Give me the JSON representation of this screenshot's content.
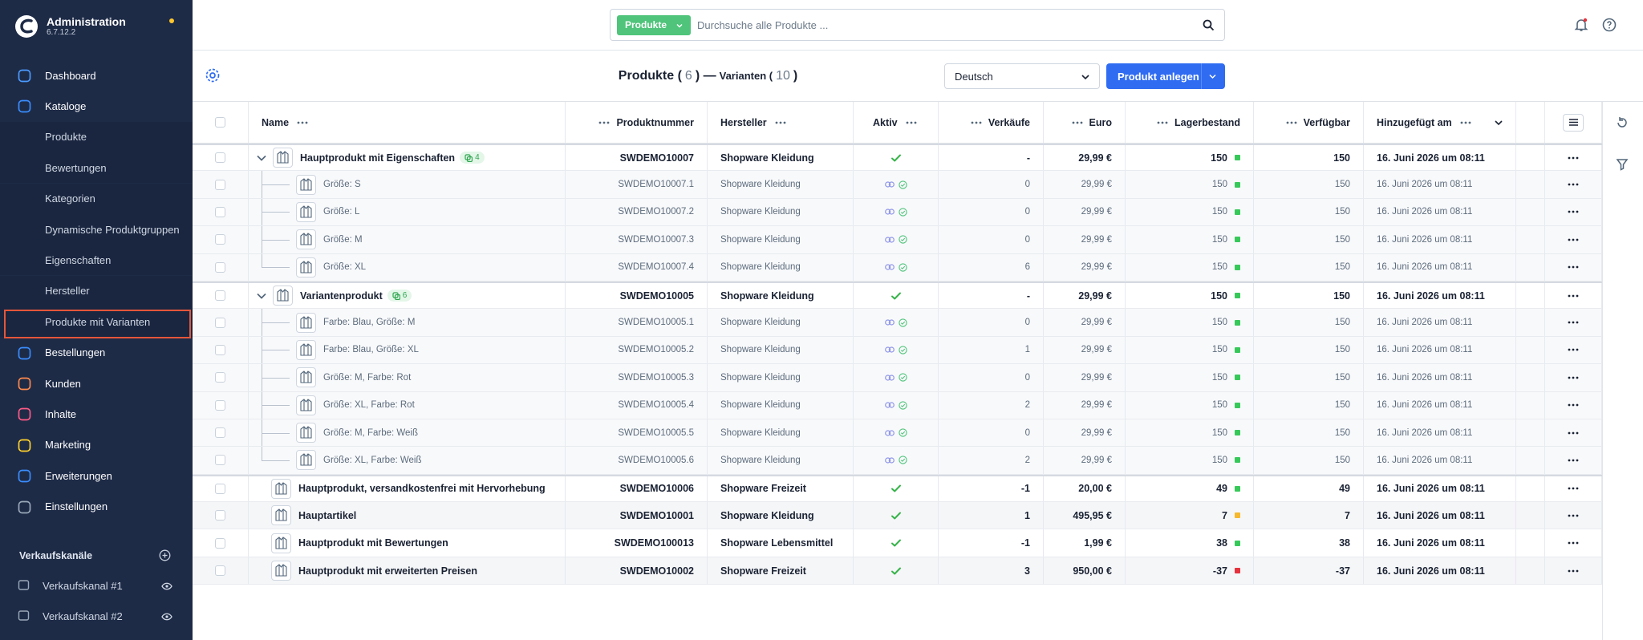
{
  "sidebar": {
    "app_name": "Administration",
    "version": "6.7.12.2",
    "nav": [
      {
        "label": "Dashboard"
      },
      {
        "label": "Kataloge",
        "children": [
          "Produkte",
          "Bewertungen",
          "Kategorien",
          "Dynamische Produktgruppen",
          "Eigenschaften",
          "Hersteller",
          "Produkte mit Varianten"
        ]
      },
      {
        "label": "Bestellungen"
      },
      {
        "label": "Kunden"
      },
      {
        "label": "Inhalte"
      },
      {
        "label": "Marketing"
      },
      {
        "label": "Erweiterungen"
      },
      {
        "label": "Einstellungen"
      }
    ],
    "sales_channels": {
      "title": "Verkaufskanäle",
      "items": [
        "Verkaufskanal #1",
        "Verkaufskanal #2"
      ]
    }
  },
  "search": {
    "filter": "Produkte",
    "placeholder": "Durchsuche alle Produkte ..."
  },
  "header": {
    "title_parts": [
      "Produkte (",
      6,
      ") —",
      "Varianten (",
      10,
      ")"
    ],
    "language": "Deutsch",
    "create_button": "Produkt anlegen"
  },
  "table": {
    "columns": [
      "Name",
      "Produktnummer",
      "Hersteller",
      "Aktiv",
      "Verkäufe",
      "Euro",
      "Lagerbestand",
      "Verfügbar",
      "Hinzugefügt am"
    ],
    "rows": [
      {
        "kind": "parent",
        "name": "Hauptprodukt mit Eigenschaften",
        "variants": 4,
        "number": "SWDEMO10007",
        "manufacturer": "Shopware Kleidung",
        "sales": "-",
        "price": "29,99 €",
        "stock": 150,
        "stock_color": "#37c85a",
        "available": 150,
        "added": "16. Juni 2026 um 08:11"
      },
      {
        "kind": "variant",
        "name": "Größe: S",
        "number": "SWDEMO10007.1",
        "manufacturer": "Shopware Kleidung",
        "sales": 0,
        "price": "29,99 €",
        "stock": 150,
        "stock_color": "#37c85a",
        "available": 150,
        "added": "16. Juni 2026 um 08:11"
      },
      {
        "kind": "variant",
        "name": "Größe: L",
        "number": "SWDEMO10007.2",
        "manufacturer": "Shopware Kleidung",
        "sales": 0,
        "price": "29,99 €",
        "stock": 150,
        "stock_color": "#37c85a",
        "available": 150,
        "added": "16. Juni 2026 um 08:11"
      },
      {
        "kind": "variant",
        "name": "Größe: M",
        "number": "SWDEMO10007.3",
        "manufacturer": "Shopware Kleidung",
        "sales": 0,
        "price": "29,99 €",
        "stock": 150,
        "stock_color": "#37c85a",
        "available": 150,
        "added": "16. Juni 2026 um 08:11"
      },
      {
        "kind": "variant",
        "name": "Größe: XL",
        "number": "SWDEMO10007.4",
        "manufacturer": "Shopware Kleidung",
        "sales": 6,
        "price": "29,99 €",
        "stock": 150,
        "stock_color": "#37c85a",
        "available": 150,
        "added": "16. Juni 2026 um 08:11"
      },
      {
        "kind": "parent",
        "name": "Variantenprodukt",
        "variants": 6,
        "number": "SWDEMO10005",
        "manufacturer": "Shopware Kleidung",
        "sales": "-",
        "price": "29,99 €",
        "stock": 150,
        "stock_color": "#37c85a",
        "available": 150,
        "added": "16. Juni 2026 um 08:11"
      },
      {
        "kind": "variant",
        "name": "Farbe: Blau, Größe: M",
        "number": "SWDEMO10005.1",
        "manufacturer": "Shopware Kleidung",
        "sales": 0,
        "price": "29,99 €",
        "stock": 150,
        "stock_color": "#37c85a",
        "available": 150,
        "added": "16. Juni 2026 um 08:11"
      },
      {
        "kind": "variant",
        "name": "Farbe: Blau, Größe: XL",
        "number": "SWDEMO10005.2",
        "manufacturer": "Shopware Kleidung",
        "sales": 1,
        "price": "29,99 €",
        "stock": 150,
        "stock_color": "#37c85a",
        "available": 150,
        "added": "16. Juni 2026 um 08:11"
      },
      {
        "kind": "variant",
        "name": "Größe: M, Farbe: Rot",
        "number": "SWDEMO10005.3",
        "manufacturer": "Shopware Kleidung",
        "sales": 0,
        "price": "29,99 €",
        "stock": 150,
        "stock_color": "#37c85a",
        "available": 150,
        "added": "16. Juni 2026 um 08:11"
      },
      {
        "kind": "variant",
        "name": "Größe: XL, Farbe: Rot",
        "number": "SWDEMO10005.4",
        "manufacturer": "Shopware Kleidung",
        "sales": 2,
        "price": "29,99 €",
        "stock": 150,
        "stock_color": "#37c85a",
        "available": 150,
        "added": "16. Juni 2026 um 08:11"
      },
      {
        "kind": "variant",
        "name": "Größe: M, Farbe: Weiß",
        "number": "SWDEMO10005.5",
        "manufacturer": "Shopware Kleidung",
        "sales": 0,
        "price": "29,99 €",
        "stock": 150,
        "stock_color": "#37c85a",
        "available": 150,
        "added": "16. Juni 2026 um 08:11"
      },
      {
        "kind": "variant",
        "name": "Größe: XL, Farbe: Weiß",
        "number": "SWDEMO10005.6",
        "manufacturer": "Shopware Kleidung",
        "sales": 2,
        "price": "29,99 €",
        "stock": 150,
        "stock_color": "#37c85a",
        "available": 150,
        "added": "16. Juni 2026 um 08:11"
      },
      {
        "kind": "product",
        "name": "Hauptprodukt, versandkostenfrei mit Hervorhebung",
        "number": "SWDEMO10006",
        "manufacturer": "Shopware Freizeit",
        "sales": -1,
        "price": "20,00 €",
        "stock": 49,
        "stock_color": "#37c85a",
        "available": 49,
        "added": "16. Juni 2026 um 08:11"
      },
      {
        "kind": "product",
        "name": "Hauptartikel",
        "number": "SWDEMO10001",
        "manufacturer": "Shopware Kleidung",
        "sales": 1,
        "price": "495,95 €",
        "stock": 7,
        "stock_color": "#f5b82e",
        "available": 7,
        "added": "16. Juni 2026 um 08:11"
      },
      {
        "kind": "product",
        "name": "Hauptprodukt mit Bewertungen",
        "number": "SWDEMO100013",
        "manufacturer": "Shopware Lebensmittel",
        "sales": -1,
        "price": "1,99 €",
        "stock": 38,
        "stock_color": "#37c85a",
        "available": 38,
        "added": "16. Juni 2026 um 08:11"
      },
      {
        "kind": "product",
        "name": "Hauptprodukt mit erweiterten Preisen",
        "number": "SWDEMO10002",
        "manufacturer": "Shopware Freizeit",
        "sales": 3,
        "price": "950,00 €",
        "stock": -37,
        "stock_color": "#e5323c",
        "available": -37,
        "added": "16. Juni 2026 um 08:11"
      }
    ]
  }
}
